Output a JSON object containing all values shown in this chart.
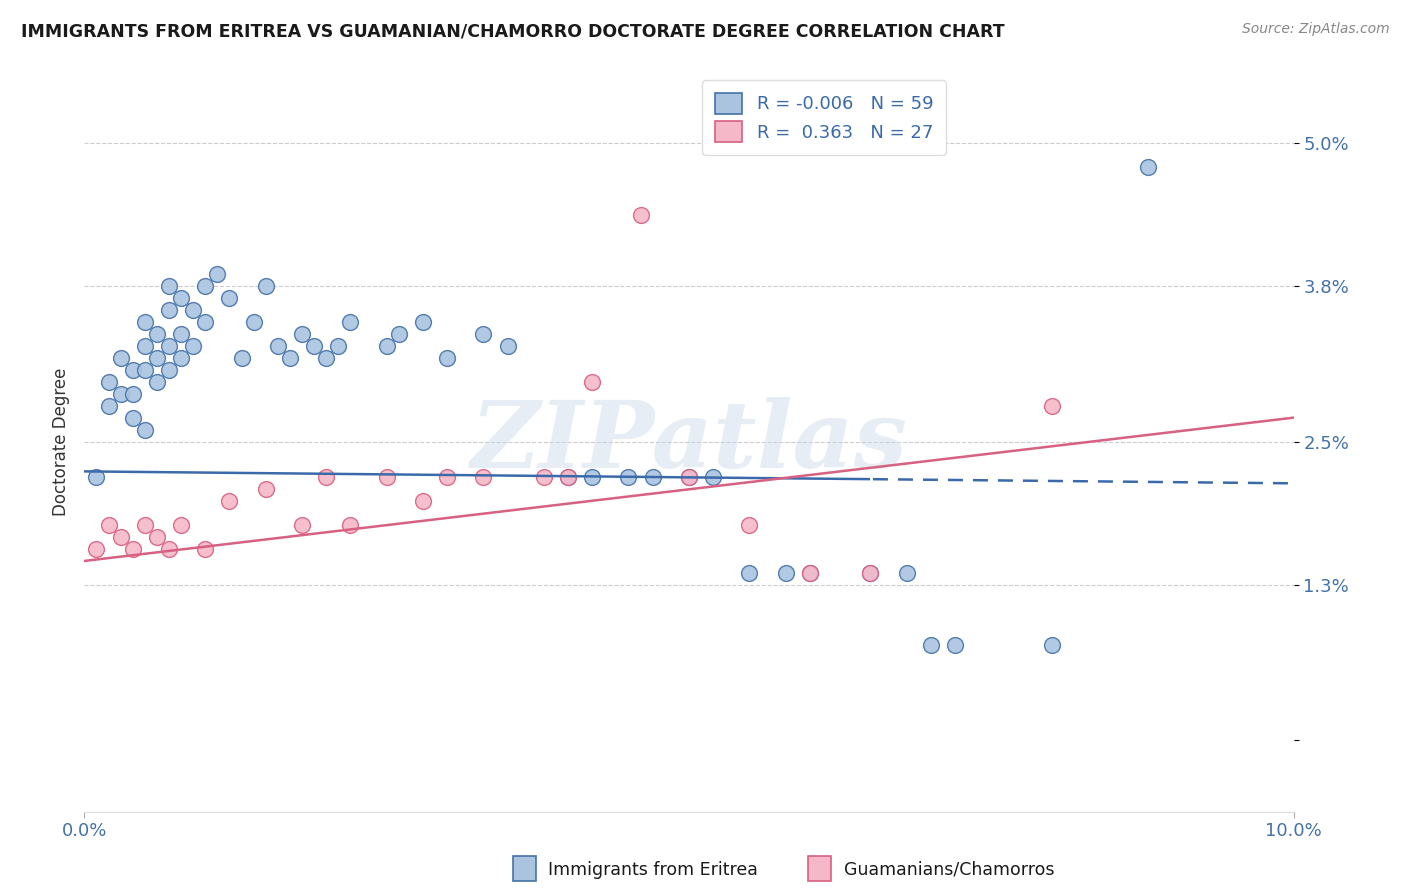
{
  "title": "IMMIGRANTS FROM ERITREA VS GUAMANIAN/CHAMORRO DOCTORATE DEGREE CORRELATION CHART",
  "source": "Source: ZipAtlas.com",
  "ylabel": "Doctorate Degree",
  "r1": -0.006,
  "n1": 59,
  "r2": 0.363,
  "n2": 27,
  "xlim": [
    0.0,
    0.1
  ],
  "ylim": [
    -0.006,
    0.056
  ],
  "ytick_vals": [
    0.0,
    0.013,
    0.025,
    0.038,
    0.05
  ],
  "ytick_labels": [
    "",
    "1.3%",
    "2.5%",
    "3.8%",
    "5.0%"
  ],
  "xtick_vals": [
    0.0,
    0.1
  ],
  "xtick_labels": [
    "0.0%",
    "10.0%"
  ],
  "legend1": "Immigrants from Eritrea",
  "legend2": "Guamanians/Chamorros",
  "color1": "#aac4e0",
  "color1_edge": "#4472a8",
  "color1_line": "#3a6aaa",
  "color2": "#f5b8c8",
  "color2_edge": "#d86080",
  "color2_line": "#d86080",
  "watermark": "ZIPatlas",
  "blue_x": [
    0.001,
    0.002,
    0.002,
    0.003,
    0.003,
    0.004,
    0.004,
    0.004,
    0.005,
    0.005,
    0.005,
    0.005,
    0.006,
    0.006,
    0.006,
    0.007,
    0.007,
    0.007,
    0.007,
    0.008,
    0.008,
    0.008,
    0.009,
    0.009,
    0.01,
    0.01,
    0.011,
    0.012,
    0.013,
    0.014,
    0.015,
    0.016,
    0.017,
    0.018,
    0.019,
    0.02,
    0.021,
    0.022,
    0.025,
    0.026,
    0.028,
    0.03,
    0.033,
    0.035,
    0.04,
    0.042,
    0.045,
    0.047,
    0.05,
    0.052,
    0.055,
    0.058,
    0.06,
    0.065,
    0.068,
    0.07,
    0.072,
    0.08,
    0.088
  ],
  "blue_y": [
    0.022,
    0.03,
    0.028,
    0.032,
    0.029,
    0.031,
    0.029,
    0.027,
    0.035,
    0.033,
    0.031,
    0.026,
    0.034,
    0.032,
    0.03,
    0.038,
    0.036,
    0.033,
    0.031,
    0.037,
    0.034,
    0.032,
    0.036,
    0.033,
    0.038,
    0.035,
    0.039,
    0.037,
    0.032,
    0.035,
    0.038,
    0.033,
    0.032,
    0.034,
    0.033,
    0.032,
    0.033,
    0.035,
    0.033,
    0.034,
    0.035,
    0.032,
    0.034,
    0.033,
    0.022,
    0.022,
    0.022,
    0.022,
    0.022,
    0.022,
    0.014,
    0.014,
    0.014,
    0.014,
    0.014,
    0.008,
    0.008,
    0.008,
    0.048
  ],
  "pink_x": [
    0.001,
    0.002,
    0.003,
    0.004,
    0.005,
    0.006,
    0.007,
    0.008,
    0.01,
    0.012,
    0.015,
    0.018,
    0.02,
    0.022,
    0.025,
    0.028,
    0.03,
    0.033,
    0.038,
    0.04,
    0.042,
    0.046,
    0.05,
    0.055,
    0.06,
    0.065,
    0.08
  ],
  "pink_y": [
    0.016,
    0.018,
    0.017,
    0.016,
    0.018,
    0.017,
    0.016,
    0.018,
    0.016,
    0.02,
    0.021,
    0.018,
    0.022,
    0.018,
    0.022,
    0.02,
    0.022,
    0.022,
    0.022,
    0.022,
    0.03,
    0.044,
    0.022,
    0.018,
    0.014,
    0.014,
    0.028
  ]
}
